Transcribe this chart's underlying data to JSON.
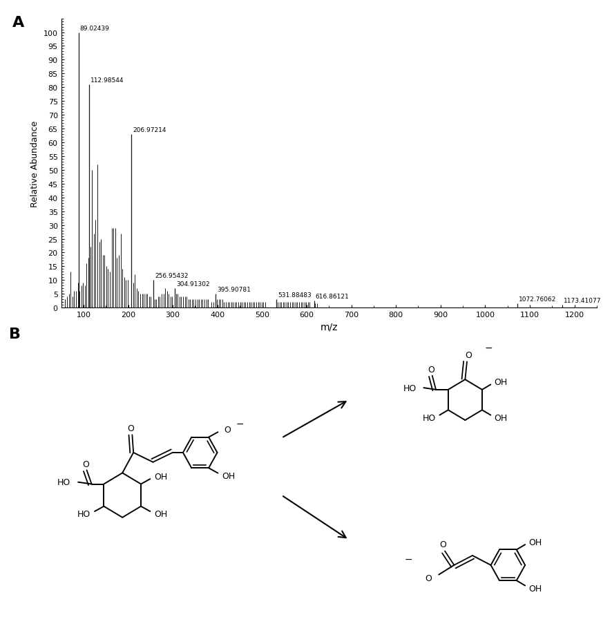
{
  "panel_A_label": "A",
  "panel_B_label": "B",
  "spectrum": {
    "xlabel": "m/z",
    "ylabel": "Relative Abundance",
    "xlim": [
      50,
      1250
    ],
    "ylim": [
      0,
      105
    ],
    "xticks": [
      100,
      200,
      300,
      400,
      500,
      600,
      700,
      800,
      900,
      1000,
      1100,
      1200
    ],
    "yticks": [
      0,
      5,
      10,
      15,
      20,
      25,
      30,
      35,
      40,
      45,
      50,
      55,
      60,
      65,
      70,
      75,
      80,
      85,
      90,
      95,
      100
    ],
    "labeled_peaks": [
      {
        "mz": 89.02439,
        "intensity": 100,
        "label": "89.02439"
      },
      {
        "mz": 112.98544,
        "intensity": 81,
        "label": "112.98544"
      },
      {
        "mz": 206.97214,
        "intensity": 63,
        "label": "206.97214"
      },
      {
        "mz": 256.95432,
        "intensity": 10,
        "label": "256.95432"
      },
      {
        "mz": 304.91302,
        "intensity": 7,
        "label": "304.91302"
      },
      {
        "mz": 395.90781,
        "intensity": 5,
        "label": "395.90781"
      },
      {
        "mz": 531.88483,
        "intensity": 3,
        "label": "531.88483"
      },
      {
        "mz": 616.86121,
        "intensity": 2.5,
        "label": "616.86121"
      },
      {
        "mz": 1072.76062,
        "intensity": 1.5,
        "label": "1072.76062"
      },
      {
        "mz": 1173.41077,
        "intensity": 1,
        "label": "1173.41077"
      }
    ],
    "unlabeled_peaks": [
      {
        "mz": 59,
        "intensity": 3
      },
      {
        "mz": 63,
        "intensity": 4
      },
      {
        "mz": 67,
        "intensity": 5
      },
      {
        "mz": 71,
        "intensity": 13
      },
      {
        "mz": 75,
        "intensity": 4
      },
      {
        "mz": 79,
        "intensity": 6
      },
      {
        "mz": 83,
        "intensity": 6
      },
      {
        "mz": 87,
        "intensity": 9
      },
      {
        "mz": 91,
        "intensity": 6
      },
      {
        "mz": 95,
        "intensity": 8
      },
      {
        "mz": 99,
        "intensity": 9
      },
      {
        "mz": 103,
        "intensity": 8
      },
      {
        "mz": 107,
        "intensity": 16
      },
      {
        "mz": 111,
        "intensity": 18
      },
      {
        "mz": 115,
        "intensity": 22
      },
      {
        "mz": 119,
        "intensity": 50
      },
      {
        "mz": 123,
        "intensity": 27
      },
      {
        "mz": 127,
        "intensity": 32
      },
      {
        "mz": 131,
        "intensity": 52
      },
      {
        "mz": 135,
        "intensity": 24
      },
      {
        "mz": 139,
        "intensity": 25
      },
      {
        "mz": 143,
        "intensity": 19
      },
      {
        "mz": 147,
        "intensity": 19
      },
      {
        "mz": 151,
        "intensity": 15
      },
      {
        "mz": 155,
        "intensity": 14
      },
      {
        "mz": 159,
        "intensity": 13
      },
      {
        "mz": 163,
        "intensity": 29
      },
      {
        "mz": 167,
        "intensity": 29
      },
      {
        "mz": 171,
        "intensity": 29
      },
      {
        "mz": 175,
        "intensity": 18
      },
      {
        "mz": 179,
        "intensity": 19
      },
      {
        "mz": 183,
        "intensity": 27
      },
      {
        "mz": 187,
        "intensity": 14
      },
      {
        "mz": 191,
        "intensity": 11
      },
      {
        "mz": 195,
        "intensity": 10
      },
      {
        "mz": 199,
        "intensity": 10
      },
      {
        "mz": 207,
        "intensity": 7
      },
      {
        "mz": 211,
        "intensity": 9
      },
      {
        "mz": 215,
        "intensity": 12
      },
      {
        "mz": 219,
        "intensity": 7
      },
      {
        "mz": 223,
        "intensity": 6
      },
      {
        "mz": 227,
        "intensity": 5
      },
      {
        "mz": 231,
        "intensity": 5
      },
      {
        "mz": 235,
        "intensity": 5
      },
      {
        "mz": 239,
        "intensity": 5
      },
      {
        "mz": 243,
        "intensity": 5
      },
      {
        "mz": 247,
        "intensity": 4
      },
      {
        "mz": 251,
        "intensity": 4
      },
      {
        "mz": 259,
        "intensity": 3
      },
      {
        "mz": 263,
        "intensity": 3
      },
      {
        "mz": 267,
        "intensity": 4
      },
      {
        "mz": 271,
        "intensity": 4
      },
      {
        "mz": 275,
        "intensity": 5
      },
      {
        "mz": 279,
        "intensity": 5
      },
      {
        "mz": 283,
        "intensity": 7
      },
      {
        "mz": 287,
        "intensity": 6
      },
      {
        "mz": 291,
        "intensity": 5
      },
      {
        "mz": 295,
        "intensity": 4
      },
      {
        "mz": 299,
        "intensity": 4
      },
      {
        "mz": 307,
        "intensity": 5
      },
      {
        "mz": 311,
        "intensity": 5
      },
      {
        "mz": 315,
        "intensity": 4
      },
      {
        "mz": 319,
        "intensity": 4
      },
      {
        "mz": 323,
        "intensity": 4
      },
      {
        "mz": 327,
        "intensity": 4
      },
      {
        "mz": 331,
        "intensity": 4
      },
      {
        "mz": 335,
        "intensity": 3
      },
      {
        "mz": 339,
        "intensity": 3
      },
      {
        "mz": 343,
        "intensity": 3
      },
      {
        "mz": 347,
        "intensity": 3
      },
      {
        "mz": 351,
        "intensity": 3
      },
      {
        "mz": 355,
        "intensity": 3
      },
      {
        "mz": 359,
        "intensity": 3
      },
      {
        "mz": 363,
        "intensity": 3
      },
      {
        "mz": 367,
        "intensity": 3
      },
      {
        "mz": 371,
        "intensity": 3
      },
      {
        "mz": 375,
        "intensity": 3
      },
      {
        "mz": 379,
        "intensity": 3
      },
      {
        "mz": 387,
        "intensity": 2
      },
      {
        "mz": 391,
        "intensity": 2
      },
      {
        "mz": 399,
        "intensity": 3
      },
      {
        "mz": 403,
        "intensity": 3
      },
      {
        "mz": 407,
        "intensity": 3
      },
      {
        "mz": 411,
        "intensity": 3
      },
      {
        "mz": 415,
        "intensity": 2
      },
      {
        "mz": 419,
        "intensity": 2
      },
      {
        "mz": 423,
        "intensity": 2
      },
      {
        "mz": 427,
        "intensity": 2
      },
      {
        "mz": 431,
        "intensity": 2
      },
      {
        "mz": 435,
        "intensity": 2
      },
      {
        "mz": 439,
        "intensity": 2
      },
      {
        "mz": 443,
        "intensity": 2
      },
      {
        "mz": 447,
        "intensity": 2
      },
      {
        "mz": 451,
        "intensity": 2
      },
      {
        "mz": 455,
        "intensity": 2
      },
      {
        "mz": 459,
        "intensity": 2
      },
      {
        "mz": 463,
        "intensity": 2
      },
      {
        "mz": 467,
        "intensity": 2
      },
      {
        "mz": 471,
        "intensity": 2
      },
      {
        "mz": 475,
        "intensity": 2
      },
      {
        "mz": 479,
        "intensity": 2
      },
      {
        "mz": 483,
        "intensity": 2
      },
      {
        "mz": 487,
        "intensity": 2
      },
      {
        "mz": 491,
        "intensity": 2
      },
      {
        "mz": 495,
        "intensity": 2
      },
      {
        "mz": 499,
        "intensity": 2
      },
      {
        "mz": 503,
        "intensity": 2
      },
      {
        "mz": 507,
        "intensity": 2
      },
      {
        "mz": 535,
        "intensity": 2
      },
      {
        "mz": 539,
        "intensity": 2
      },
      {
        "mz": 543,
        "intensity": 2
      },
      {
        "mz": 547,
        "intensity": 2
      },
      {
        "mz": 551,
        "intensity": 2
      },
      {
        "mz": 555,
        "intensity": 2
      },
      {
        "mz": 559,
        "intensity": 2
      },
      {
        "mz": 563,
        "intensity": 2
      },
      {
        "mz": 567,
        "intensity": 2
      },
      {
        "mz": 571,
        "intensity": 2
      },
      {
        "mz": 575,
        "intensity": 2
      },
      {
        "mz": 579,
        "intensity": 2
      },
      {
        "mz": 583,
        "intensity": 2
      },
      {
        "mz": 587,
        "intensity": 2
      },
      {
        "mz": 591,
        "intensity": 2
      },
      {
        "mz": 595,
        "intensity": 2
      },
      {
        "mz": 599,
        "intensity": 2
      },
      {
        "mz": 603,
        "intensity": 2
      },
      {
        "mz": 607,
        "intensity": 2
      },
      {
        "mz": 619,
        "intensity": 1.5
      },
      {
        "mz": 623,
        "intensity": 1.5
      }
    ]
  },
  "background_color": "#ffffff",
  "line_color": "#1a1a1a",
  "text_color": "#000000"
}
